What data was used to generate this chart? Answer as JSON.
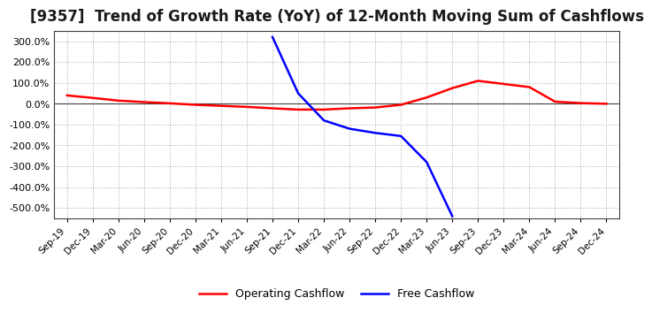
{
  "title": "[9357]  Trend of Growth Rate (YoY) of 12-Month Moving Sum of Cashflows",
  "title_fontsize": 12,
  "background_color": "#ffffff",
  "plot_bg_color": "#ffffff",
  "grid_color": "#aaaaaa",
  "ylim": [
    -550,
    350
  ],
  "yticks": [
    300,
    200,
    100,
    0,
    -100,
    -200,
    -300,
    -400,
    -500
  ],
  "x_labels": [
    "Sep-19",
    "Dec-19",
    "Mar-20",
    "Jun-20",
    "Sep-20",
    "Dec-20",
    "Mar-21",
    "Jun-21",
    "Sep-21",
    "Dec-21",
    "Mar-22",
    "Jun-22",
    "Sep-22",
    "Dec-22",
    "Mar-23",
    "Jun-23",
    "Sep-23",
    "Dec-23",
    "Mar-24",
    "Jun-24",
    "Sep-24",
    "Dec-24"
  ],
  "operating_cashflow": [
    40,
    28,
    15,
    8,
    2,
    -5,
    -10,
    -15,
    -22,
    -28,
    -28,
    -22,
    -18,
    -5,
    30,
    75,
    110,
    95,
    80,
    10,
    3,
    0
  ],
  "free_cashflow_x_indices": [
    8,
    9,
    10,
    11,
    12,
    13,
    14,
    15
  ],
  "free_cashflow_y": [
    320,
    50,
    -80,
    -120,
    -140,
    -155,
    -280,
    -540
  ],
  "operating_color": "#ff0000",
  "free_color": "#0000ff",
  "legend_labels": [
    "Operating Cashflow",
    "Free Cashflow"
  ],
  "zero_line_color": "#404040",
  "line_width": 1.8
}
